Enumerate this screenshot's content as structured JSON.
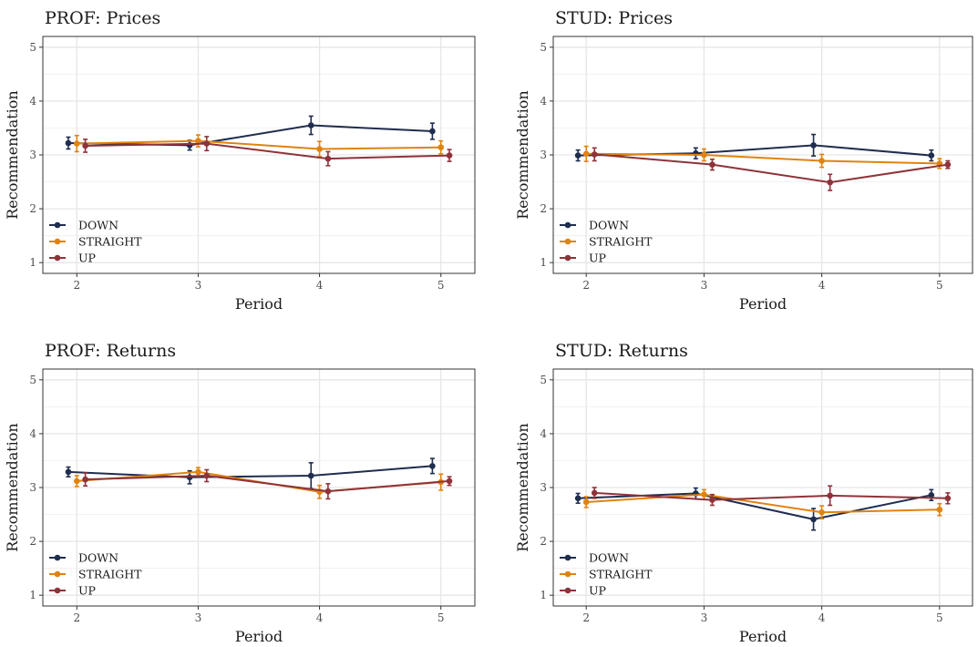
{
  "colors": {
    "DOWN": "#1f2d4e",
    "STRAIGHT": "#e08310",
    "UP": "#8e333a"
  },
  "chart_data": [
    {
      "type": "line",
      "title": "PROF: Prices",
      "xlabel": "Period",
      "ylabel": "Recommendation",
      "xlim": [
        1.72,
        5.28
      ],
      "ylim": [
        0.8,
        5.2
      ],
      "x_ticks": [
        2,
        3,
        4,
        5
      ],
      "y_ticks": [
        1,
        2,
        3,
        4,
        5
      ],
      "grid": true,
      "legend_position": "bottom-left",
      "series": [
        {
          "name": "DOWN",
          "x": [
            2,
            3,
            4,
            5
          ],
          "values": [
            3.22,
            3.18,
            3.55,
            3.44
          ],
          "err": [
            0.11,
            0.09,
            0.17,
            0.15
          ]
        },
        {
          "name": "STRAIGHT",
          "x": [
            2,
            3,
            4,
            5
          ],
          "values": [
            3.21,
            3.26,
            3.11,
            3.14
          ],
          "err": [
            0.15,
            0.11,
            0.14,
            0.12
          ]
        },
        {
          "name": "UP",
          "x": [
            2,
            3,
            4,
            5
          ],
          "values": [
            3.17,
            3.21,
            2.93,
            2.99
          ],
          "err": [
            0.12,
            0.13,
            0.13,
            0.11
          ]
        }
      ]
    },
    {
      "type": "line",
      "title": "STUD: Prices",
      "xlabel": "Period",
      "ylabel": "Recommendation",
      "xlim": [
        1.72,
        5.28
      ],
      "ylim": [
        0.8,
        5.2
      ],
      "x_ticks": [
        2,
        3,
        4,
        5
      ],
      "y_ticks": [
        1,
        2,
        3,
        4,
        5
      ],
      "grid": true,
      "legend_position": "bottom-left",
      "series": [
        {
          "name": "DOWN",
          "x": [
            2,
            3,
            4,
            5
          ],
          "values": [
            2.99,
            3.03,
            3.18,
            2.99
          ],
          "err": [
            0.1,
            0.1,
            0.2,
            0.1
          ]
        },
        {
          "name": "STRAIGHT",
          "x": [
            2,
            3,
            4,
            5
          ],
          "values": [
            3.02,
            3.0,
            2.89,
            2.84
          ],
          "err": [
            0.14,
            0.11,
            0.12,
            0.09
          ]
        },
        {
          "name": "UP",
          "x": [
            2,
            3,
            4,
            5
          ],
          "values": [
            3.01,
            2.82,
            2.49,
            2.82
          ],
          "err": [
            0.12,
            0.1,
            0.15,
            0.07
          ]
        }
      ]
    },
    {
      "type": "line",
      "title": "PROF: Returns",
      "xlabel": "Period",
      "ylabel": "Recommendation",
      "xlim": [
        1.72,
        5.28
      ],
      "ylim": [
        0.8,
        5.2
      ],
      "x_ticks": [
        2,
        3,
        4,
        5
      ],
      "y_ticks": [
        1,
        2,
        3,
        4,
        5
      ],
      "grid": true,
      "legend_position": "bottom-left",
      "series": [
        {
          "name": "DOWN",
          "x": [
            2,
            3,
            4,
            5
          ],
          "values": [
            3.29,
            3.19,
            3.22,
            3.4
          ],
          "err": [
            0.09,
            0.12,
            0.24,
            0.14
          ]
        },
        {
          "name": "STRAIGHT",
          "x": [
            2,
            3,
            4,
            5
          ],
          "values": [
            3.12,
            3.29,
            2.92,
            3.1
          ],
          "err": [
            0.1,
            0.08,
            0.12,
            0.15
          ]
        },
        {
          "name": "UP",
          "x": [
            2,
            3,
            4,
            5
          ],
          "values": [
            3.15,
            3.22,
            2.93,
            3.12
          ],
          "err": [
            0.12,
            0.11,
            0.14,
            0.08
          ]
        }
      ]
    },
    {
      "type": "line",
      "title": "STUD: Returns",
      "xlabel": "Period",
      "ylabel": "Recommendation",
      "xlim": [
        1.72,
        5.28
      ],
      "ylim": [
        0.8,
        5.2
      ],
      "x_ticks": [
        2,
        3,
        4,
        5
      ],
      "y_ticks": [
        1,
        2,
        3,
        4,
        5
      ],
      "grid": true,
      "legend_position": "bottom-left",
      "series": [
        {
          "name": "DOWN",
          "x": [
            2,
            3,
            4,
            5
          ],
          "values": [
            2.8,
            2.89,
            2.41,
            2.86
          ],
          "err": [
            0.09,
            0.1,
            0.2,
            0.1
          ]
        },
        {
          "name": "STRAIGHT",
          "x": [
            2,
            3,
            4,
            5
          ],
          "values": [
            2.73,
            2.87,
            2.54,
            2.59
          ],
          "err": [
            0.1,
            0.09,
            0.12,
            0.11
          ]
        },
        {
          "name": "UP",
          "x": [
            2,
            3,
            4,
            5
          ],
          "values": [
            2.9,
            2.77,
            2.85,
            2.8
          ],
          "err": [
            0.1,
            0.1,
            0.18,
            0.1
          ]
        }
      ]
    }
  ]
}
